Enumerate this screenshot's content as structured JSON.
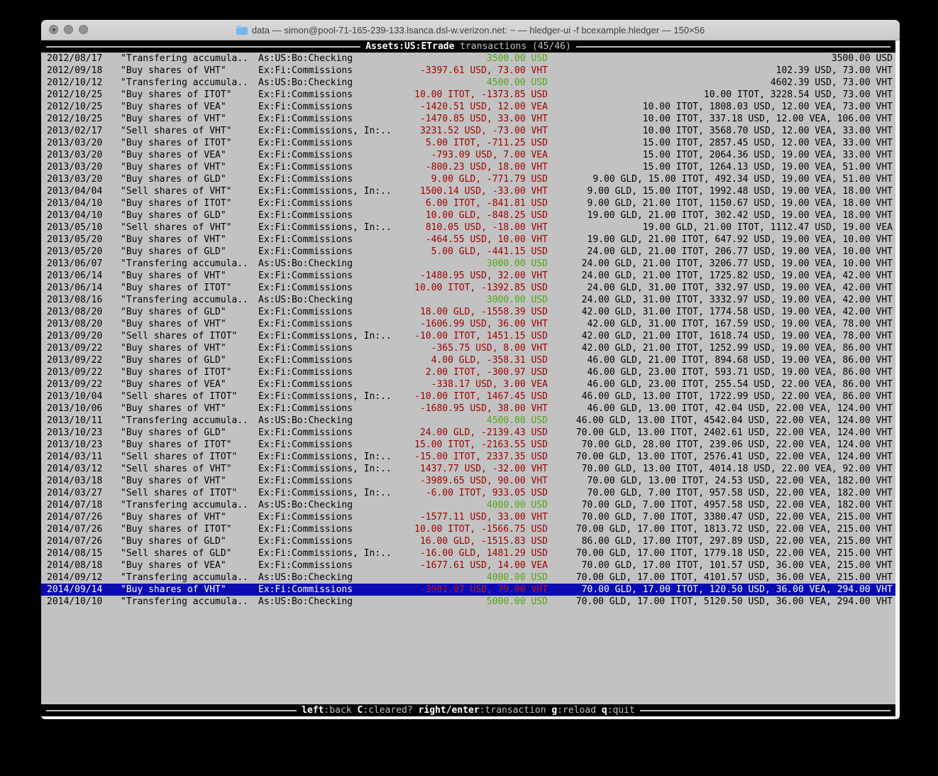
{
  "window": {
    "title": "data — simon@pool-71-165-239-133.lsanca.dsl-w.verizon.net: ~ — hledger-ui -f bcexample.hledger — 150×56",
    "folder_icon": "folder-icon"
  },
  "colors": {
    "terminal_bg": "#c2c2c2",
    "bar_bg": "#000000",
    "negative_amount": "#a00000",
    "positive_amount": "#53a615",
    "selection_bg": "#0b0bb4"
  },
  "top_bar": {
    "account": "Assets:US:ETrade",
    "subtitle": "transactions (45/46)"
  },
  "bottom_bar": {
    "hints": [
      {
        "key": "left",
        "action": ":back"
      },
      {
        "key": "C",
        "action": ":cleared?"
      },
      {
        "key": "right/enter",
        "action": ":transaction"
      },
      {
        "key": "g",
        "action": ":reload"
      },
      {
        "key": "q",
        "action": ":quit"
      }
    ]
  },
  "register": {
    "selected_index": 44,
    "rows": [
      {
        "date": "2012/08/17",
        "description": "\"Transfering accumula..",
        "account": "As:US:Bo:Checking",
        "amount": "3500.00 USD",
        "amount_color": "pos",
        "balance": "3500.00 USD"
      },
      {
        "date": "2012/09/18",
        "description": "\"Buy shares of VHT\"",
        "account": "Ex:Fi:Commissions",
        "amount": "-3397.61 USD, 73.00 VHT",
        "amount_color": "neg",
        "balance": "102.39 USD, 73.00 VHT"
      },
      {
        "date": "2012/10/12",
        "description": "\"Transfering accumula..",
        "account": "As:US:Bo:Checking",
        "amount": "4500.00 USD",
        "amount_color": "pos",
        "balance": "4602.39 USD, 73.00 VHT"
      },
      {
        "date": "2012/10/25",
        "description": "\"Buy shares of ITOT\"",
        "account": "Ex:Fi:Commissions",
        "amount": "10.00 ITOT, -1373.85 USD",
        "amount_color": "neg",
        "balance": "10.00 ITOT, 3228.54 USD, 73.00 VHT"
      },
      {
        "date": "2012/10/25",
        "description": "\"Buy shares of VEA\"",
        "account": "Ex:Fi:Commissions",
        "amount": "-1420.51 USD, 12.00 VEA",
        "amount_color": "neg",
        "balance": "10.00 ITOT, 1808.03 USD, 12.00 VEA, 73.00 VHT"
      },
      {
        "date": "2012/10/25",
        "description": "\"Buy shares of VHT\"",
        "account": "Ex:Fi:Commissions",
        "amount": "-1470.85 USD, 33.00 VHT",
        "amount_color": "neg",
        "balance": "10.00 ITOT, 337.18 USD, 12.00 VEA, 106.00 VHT"
      },
      {
        "date": "2013/02/17",
        "description": "\"Sell shares of VHT\"",
        "account": "Ex:Fi:Commissions, In:..",
        "amount": "3231.52 USD, -73.00 VHT",
        "amount_color": "neg",
        "balance": "10.00 ITOT, 3568.70 USD, 12.00 VEA, 33.00 VHT"
      },
      {
        "date": "2013/03/20",
        "description": "\"Buy shares of ITOT\"",
        "account": "Ex:Fi:Commissions",
        "amount": "5.00 ITOT, -711.25 USD",
        "amount_color": "neg",
        "balance": "15.00 ITOT, 2857.45 USD, 12.00 VEA, 33.00 VHT"
      },
      {
        "date": "2013/03/20",
        "description": "\"Buy shares of VEA\"",
        "account": "Ex:Fi:Commissions",
        "amount": "-793.09 USD, 7.00 VEA",
        "amount_color": "neg",
        "balance": "15.00 ITOT, 2064.36 USD, 19.00 VEA, 33.00 VHT"
      },
      {
        "date": "2013/03/20",
        "description": "\"Buy shares of VHT\"",
        "account": "Ex:Fi:Commissions",
        "amount": "-800.23 USD, 18.00 VHT",
        "amount_color": "neg",
        "balance": "15.00 ITOT, 1264.13 USD, 19.00 VEA, 51.00 VHT"
      },
      {
        "date": "2013/03/20",
        "description": "\"Buy shares of GLD\"",
        "account": "Ex:Fi:Commissions",
        "amount": "9.00 GLD, -771.79 USD",
        "amount_color": "neg",
        "balance": "9.00 GLD, 15.00 ITOT, 492.34 USD, 19.00 VEA, 51.00 VHT"
      },
      {
        "date": "2013/04/04",
        "description": "\"Sell shares of VHT\"",
        "account": "Ex:Fi:Commissions, In:..",
        "amount": "1500.14 USD, -33.00 VHT",
        "amount_color": "neg",
        "balance": "9.00 GLD, 15.00 ITOT, 1992.48 USD, 19.00 VEA, 18.00 VHT"
      },
      {
        "date": "2013/04/10",
        "description": "\"Buy shares of ITOT\"",
        "account": "Ex:Fi:Commissions",
        "amount": "6.00 ITOT, -841.81 USD",
        "amount_color": "neg",
        "balance": "9.00 GLD, 21.00 ITOT, 1150.67 USD, 19.00 VEA, 18.00 VHT"
      },
      {
        "date": "2013/04/10",
        "description": "\"Buy shares of GLD\"",
        "account": "Ex:Fi:Commissions",
        "amount": "10.00 GLD, -848.25 USD",
        "amount_color": "neg",
        "balance": "19.00 GLD, 21.00 ITOT, 302.42 USD, 19.00 VEA, 18.00 VHT"
      },
      {
        "date": "2013/05/10",
        "description": "\"Sell shares of VHT\"",
        "account": "Ex:Fi:Commissions, In:..",
        "amount": "810.05 USD, -18.00 VHT",
        "amount_color": "neg",
        "balance": "19.00 GLD, 21.00 ITOT, 1112.47 USD, 19.00 VEA"
      },
      {
        "date": "2013/05/20",
        "description": "\"Buy shares of VHT\"",
        "account": "Ex:Fi:Commissions",
        "amount": "-464.55 USD, 10.00 VHT",
        "amount_color": "neg",
        "balance": "19.00 GLD, 21.00 ITOT, 647.92 USD, 19.00 VEA, 10.00 VHT"
      },
      {
        "date": "2013/05/20",
        "description": "\"Buy shares of GLD\"",
        "account": "Ex:Fi:Commissions",
        "amount": "5.00 GLD, -441.15 USD",
        "amount_color": "neg",
        "balance": "24.00 GLD, 21.00 ITOT, 206.77 USD, 19.00 VEA, 10.00 VHT"
      },
      {
        "date": "2013/06/07",
        "description": "\"Transfering accumula..",
        "account": "As:US:Bo:Checking",
        "amount": "3000.00 USD",
        "amount_color": "pos",
        "balance": "24.00 GLD, 21.00 ITOT, 3206.77 USD, 19.00 VEA, 10.00 VHT"
      },
      {
        "date": "2013/06/14",
        "description": "\"Buy shares of VHT\"",
        "account": "Ex:Fi:Commissions",
        "amount": "-1480.95 USD, 32.00 VHT",
        "amount_color": "neg",
        "balance": "24.00 GLD, 21.00 ITOT, 1725.82 USD, 19.00 VEA, 42.00 VHT"
      },
      {
        "date": "2013/06/14",
        "description": "\"Buy shares of ITOT\"",
        "account": "Ex:Fi:Commissions",
        "amount": "10.00 ITOT, -1392.85 USD",
        "amount_color": "neg",
        "balance": "24.00 GLD, 31.00 ITOT, 332.97 USD, 19.00 VEA, 42.00 VHT"
      },
      {
        "date": "2013/08/16",
        "description": "\"Transfering accumula..",
        "account": "As:US:Bo:Checking",
        "amount": "3000.00 USD",
        "amount_color": "pos",
        "balance": "24.00 GLD, 31.00 ITOT, 3332.97 USD, 19.00 VEA, 42.00 VHT"
      },
      {
        "date": "2013/08/20",
        "description": "\"Buy shares of GLD\"",
        "account": "Ex:Fi:Commissions",
        "amount": "18.00 GLD, -1558.39 USD",
        "amount_color": "neg",
        "balance": "42.00 GLD, 31.00 ITOT, 1774.58 USD, 19.00 VEA, 42.00 VHT"
      },
      {
        "date": "2013/08/20",
        "description": "\"Buy shares of VHT\"",
        "account": "Ex:Fi:Commissions",
        "amount": "-1606.99 USD, 36.00 VHT",
        "amount_color": "neg",
        "balance": "42.00 GLD, 31.00 ITOT, 167.59 USD, 19.00 VEA, 78.00 VHT"
      },
      {
        "date": "2013/09/20",
        "description": "\"Sell shares of ITOT\"",
        "account": "Ex:Fi:Commissions, In:..",
        "amount": "-10.00 ITOT, 1451.15 USD",
        "amount_color": "neg",
        "balance": "42.00 GLD, 21.00 ITOT, 1618.74 USD, 19.00 VEA, 78.00 VHT"
      },
      {
        "date": "2013/09/22",
        "description": "\"Buy shares of VHT\"",
        "account": "Ex:Fi:Commissions",
        "amount": "-365.75 USD, 8.00 VHT",
        "amount_color": "neg",
        "balance": "42.00 GLD, 21.00 ITOT, 1252.99 USD, 19.00 VEA, 86.00 VHT"
      },
      {
        "date": "2013/09/22",
        "description": "\"Buy shares of GLD\"",
        "account": "Ex:Fi:Commissions",
        "amount": "4.00 GLD, -358.31 USD",
        "amount_color": "neg",
        "balance": "46.00 GLD, 21.00 ITOT, 894.68 USD, 19.00 VEA, 86.00 VHT"
      },
      {
        "date": "2013/09/22",
        "description": "\"Buy shares of ITOT\"",
        "account": "Ex:Fi:Commissions",
        "amount": "2.00 ITOT, -300.97 USD",
        "amount_color": "neg",
        "balance": "46.00 GLD, 23.00 ITOT, 593.71 USD, 19.00 VEA, 86.00 VHT"
      },
      {
        "date": "2013/09/22",
        "description": "\"Buy shares of VEA\"",
        "account": "Ex:Fi:Commissions",
        "amount": "-338.17 USD, 3.00 VEA",
        "amount_color": "neg",
        "balance": "46.00 GLD, 23.00 ITOT, 255.54 USD, 22.00 VEA, 86.00 VHT"
      },
      {
        "date": "2013/10/04",
        "description": "\"Sell shares of ITOT\"",
        "account": "Ex:Fi:Commissions, In:..",
        "amount": "-10.00 ITOT, 1467.45 USD",
        "amount_color": "neg",
        "balance": "46.00 GLD, 13.00 ITOT, 1722.99 USD, 22.00 VEA, 86.00 VHT"
      },
      {
        "date": "2013/10/06",
        "description": "\"Buy shares of VHT\"",
        "account": "Ex:Fi:Commissions",
        "amount": "-1680.95 USD, 38.00 VHT",
        "amount_color": "neg",
        "balance": "46.00 GLD, 13.00 ITOT, 42.04 USD, 22.00 VEA, 124.00 VHT"
      },
      {
        "date": "2013/10/11",
        "description": "\"Transfering accumula..",
        "account": "As:US:Bo:Checking",
        "amount": "4500.00 USD",
        "amount_color": "pos",
        "balance": "46.00 GLD, 13.00 ITOT, 4542.04 USD, 22.00 VEA, 124.00 VHT"
      },
      {
        "date": "2013/10/23",
        "description": "\"Buy shares of GLD\"",
        "account": "Ex:Fi:Commissions",
        "amount": "24.00 GLD, -2139.43 USD",
        "amount_color": "neg",
        "balance": "70.00 GLD, 13.00 ITOT, 2402.61 USD, 22.00 VEA, 124.00 VHT"
      },
      {
        "date": "2013/10/23",
        "description": "\"Buy shares of ITOT\"",
        "account": "Ex:Fi:Commissions",
        "amount": "15.00 ITOT, -2163.55 USD",
        "amount_color": "neg",
        "balance": "70.00 GLD, 28.00 ITOT, 239.06 USD, 22.00 VEA, 124.00 VHT"
      },
      {
        "date": "2014/03/11",
        "description": "\"Sell shares of ITOT\"",
        "account": "Ex:Fi:Commissions, In:..",
        "amount": "-15.00 ITOT, 2337.35 USD",
        "amount_color": "neg",
        "balance": "70.00 GLD, 13.00 ITOT, 2576.41 USD, 22.00 VEA, 124.00 VHT"
      },
      {
        "date": "2014/03/12",
        "description": "\"Sell shares of VHT\"",
        "account": "Ex:Fi:Commissions, In:..",
        "amount": "1437.77 USD, -32.00 VHT",
        "amount_color": "neg",
        "balance": "70.00 GLD, 13.00 ITOT, 4014.18 USD, 22.00 VEA, 92.00 VHT"
      },
      {
        "date": "2014/03/18",
        "description": "\"Buy shares of VHT\"",
        "account": "Ex:Fi:Commissions",
        "amount": "-3989.65 USD, 90.00 VHT",
        "amount_color": "neg",
        "balance": "70.00 GLD, 13.00 ITOT, 24.53 USD, 22.00 VEA, 182.00 VHT"
      },
      {
        "date": "2014/03/27",
        "description": "\"Sell shares of ITOT\"",
        "account": "Ex:Fi:Commissions, In:..",
        "amount": "-6.00 ITOT, 933.05 USD",
        "amount_color": "neg",
        "balance": "70.00 GLD, 7.00 ITOT, 957.58 USD, 22.00 VEA, 182.00 VHT"
      },
      {
        "date": "2014/07/18",
        "description": "\"Transfering accumula..",
        "account": "As:US:Bo:Checking",
        "amount": "4000.00 USD",
        "amount_color": "pos",
        "balance": "70.00 GLD, 7.00 ITOT, 4957.58 USD, 22.00 VEA, 182.00 VHT"
      },
      {
        "date": "2014/07/26",
        "description": "\"Buy shares of VHT\"",
        "account": "Ex:Fi:Commissions",
        "amount": "-1577.11 USD, 33.00 VHT",
        "amount_color": "neg",
        "balance": "70.00 GLD, 7.00 ITOT, 3380.47 USD, 22.00 VEA, 215.00 VHT"
      },
      {
        "date": "2014/07/26",
        "description": "\"Buy shares of ITOT\"",
        "account": "Ex:Fi:Commissions",
        "amount": "10.00 ITOT, -1566.75 USD",
        "amount_color": "neg",
        "balance": "70.00 GLD, 17.00 ITOT, 1813.72 USD, 22.00 VEA, 215.00 VHT"
      },
      {
        "date": "2014/07/26",
        "description": "\"Buy shares of GLD\"",
        "account": "Ex:Fi:Commissions",
        "amount": "16.00 GLD, -1515.83 USD",
        "amount_color": "neg",
        "balance": "86.00 GLD, 17.00 ITOT, 297.89 USD, 22.00 VEA, 215.00 VHT"
      },
      {
        "date": "2014/08/15",
        "description": "\"Sell shares of GLD\"",
        "account": "Ex:Fi:Commissions, In:..",
        "amount": "-16.00 GLD, 1481.29 USD",
        "amount_color": "neg",
        "balance": "70.00 GLD, 17.00 ITOT, 1779.18 USD, 22.00 VEA, 215.00 VHT"
      },
      {
        "date": "2014/08/18",
        "description": "\"Buy shares of VEA\"",
        "account": "Ex:Fi:Commissions",
        "amount": "-1677.61 USD, 14.00 VEA",
        "amount_color": "neg",
        "balance": "70.00 GLD, 17.00 ITOT, 101.57 USD, 36.00 VEA, 215.00 VHT"
      },
      {
        "date": "2014/09/12",
        "description": "\"Transfering accumula..",
        "account": "As:US:Bo:Checking",
        "amount": "4000.00 USD",
        "amount_color": "pos",
        "balance": "70.00 GLD, 17.00 ITOT, 4101.57 USD, 36.00 VEA, 215.00 VHT"
      },
      {
        "date": "2014/09/14",
        "description": "\"Buy shares of VHT\"",
        "account": "Ex:Fi:Commissions",
        "amount": "-3981.07 USD, 79.00 VHT",
        "amount_color": "neg",
        "balance": "70.00 GLD, 17.00 ITOT, 120.50 USD, 36.00 VEA, 294.00 VHT"
      },
      {
        "date": "2014/10/10",
        "description": "\"Transfering accumula..",
        "account": "As:US:Bo:Checking",
        "amount": "5000.00 USD",
        "amount_color": "pos",
        "balance": "70.00 GLD, 17.00 ITOT, 5120.50 USD, 36.00 VEA, 294.00 VHT"
      }
    ]
  }
}
